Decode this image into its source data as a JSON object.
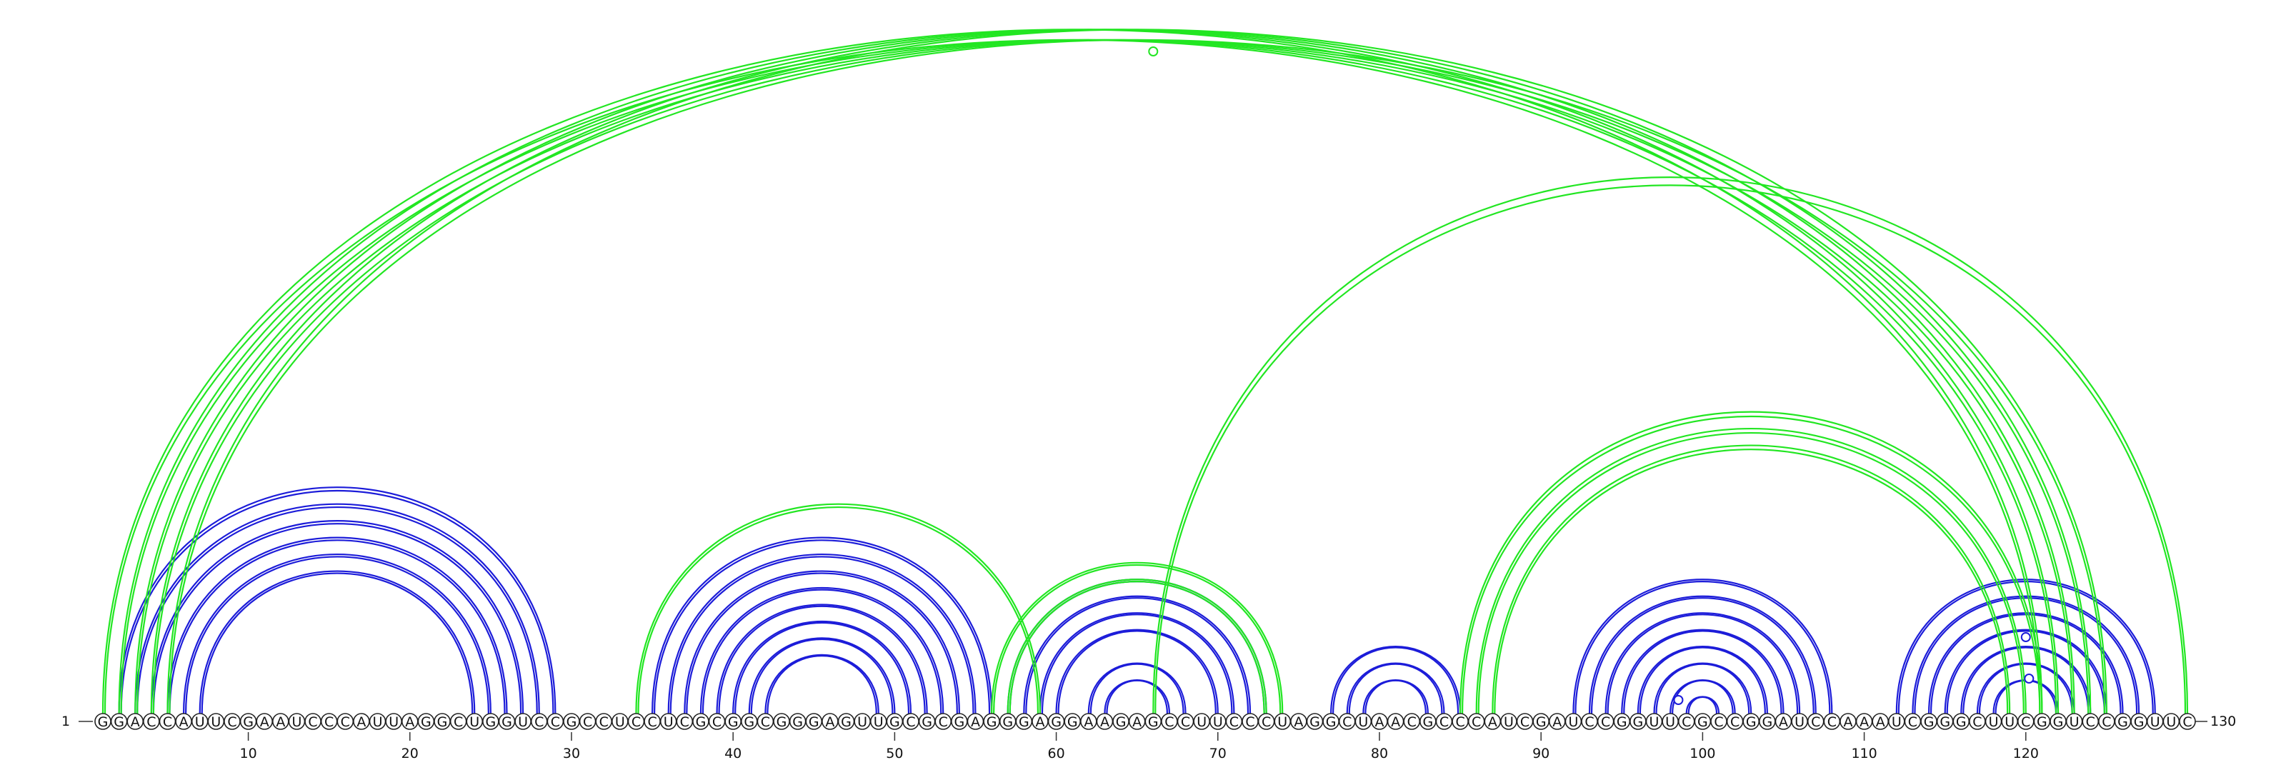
{
  "diagram": {
    "type": "rna-arc-diagram",
    "sequence": "GGACCAUUCGAAUCCCAUUAGGCUGGUCCGCCUCCUCGCGGCGGGAGUUGCGCGAGGGAGGAAGAGCCUUCCCUAGGCUAACGCCCAUCGAUCCGGUUCGCCGGAUCCAAAUCGGGCUUCGGUCCGGUUC",
    "start_label": "1",
    "end_label": "130",
    "tick_labels": [
      "10",
      "20",
      "30",
      "40",
      "50",
      "60",
      "70",
      "80",
      "90",
      "100",
      "110",
      "120"
    ],
    "colors": {
      "primary_arcs": "#1c1cd9",
      "secondary_arcs": "#22e622"
    },
    "arc_groups": [
      {
        "color": "#1c1cd9",
        "pairs": [
          [
            2,
            29
          ],
          [
            3,
            28
          ],
          [
            4,
            27
          ],
          [
            5,
            26
          ],
          [
            6,
            25
          ],
          [
            7,
            24
          ]
        ]
      },
      {
        "color": "#1c1cd9",
        "pairs": [
          [
            35,
            56
          ],
          [
            36,
            55
          ],
          [
            37,
            54
          ],
          [
            38,
            53
          ],
          [
            39,
            52
          ],
          [
            40,
            51
          ],
          [
            41,
            50
          ],
          [
            42,
            49
          ]
        ]
      },
      {
        "color": "#1c1cd9",
        "pairs": [
          [
            57,
            73
          ],
          [
            58,
            72
          ],
          [
            59,
            71
          ],
          [
            60,
            70
          ],
          [
            62,
            68
          ],
          [
            63,
            67
          ]
        ]
      },
      {
        "color": "#1c1cd9",
        "pairs": [
          [
            77,
            85
          ],
          [
            78,
            84
          ],
          [
            79,
            83
          ]
        ]
      },
      {
        "color": "#1c1cd9",
        "pairs": [
          [
            92,
            108
          ],
          [
            93,
            107
          ],
          [
            94,
            106
          ],
          [
            95,
            105
          ],
          [
            96,
            104
          ],
          [
            97,
            103
          ],
          [
            98,
            102
          ],
          [
            99,
            101
          ]
        ]
      },
      {
        "color": "#1c1cd9",
        "pairs": [
          [
            112,
            128
          ],
          [
            113,
            127
          ],
          [
            114,
            126
          ],
          [
            115,
            125
          ],
          [
            116,
            124
          ],
          [
            117,
            123
          ],
          [
            118,
            122
          ]
        ]
      },
      {
        "color": "#22e622",
        "pairs": [
          [
            1,
            121
          ],
          [
            2,
            122
          ],
          [
            3,
            123
          ],
          [
            4,
            124
          ],
          [
            5,
            125
          ],
          [
            66,
            130
          ]
        ]
      },
      {
        "color": "#22e622",
        "pairs": [
          [
            34,
            59
          ],
          [
            56,
            74
          ],
          [
            57,
            73
          ]
        ]
      },
      {
        "color": "#22e622",
        "pairs": [
          [
            85,
            121
          ],
          [
            86,
            120
          ],
          [
            87,
            119
          ]
        ]
      }
    ],
    "arc_markers": [
      {
        "color": "#22e622",
        "at": 66
      },
      {
        "color": "#1c1cd9",
        "at": 120
      },
      {
        "color": "#1c1cd9",
        "at": 120.2
      },
      {
        "color": "#1c1cd9",
        "at": 98.5
      }
    ]
  }
}
